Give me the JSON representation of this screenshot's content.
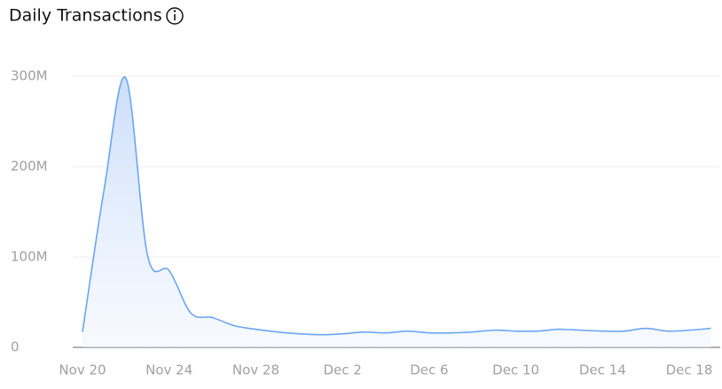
{
  "chart_data": {
    "type": "area",
    "title": "Daily Transactions",
    "categories": [
      "Nov 20",
      null,
      null,
      null,
      "Nov 24",
      null,
      null,
      null,
      "Nov 28",
      null,
      null,
      null,
      "Dec 2",
      null,
      null,
      null,
      "Dec 6",
      null,
      null,
      null,
      "Dec 10",
      null,
      null,
      null,
      "Dec 14",
      null,
      null,
      null,
      "Dec 18",
      null
    ],
    "values": [
      17,
      175,
      298,
      102,
      85,
      38,
      33,
      24,
      20,
      17,
      15,
      14,
      15,
      17,
      16,
      18,
      16,
      16,
      17,
      19,
      18,
      18,
      20,
      19,
      18,
      18,
      21,
      18,
      19,
      21
    ],
    "color": "#6aa6f2",
    "ylim": [
      0,
      300
    ],
    "yticks": [
      0,
      {
        "value": 100,
        "label": "100M"
      },
      {
        "value": 200,
        "label": "200M"
      },
      {
        "value": 300,
        "label": "300M"
      }
    ],
    "grid": true
  }
}
